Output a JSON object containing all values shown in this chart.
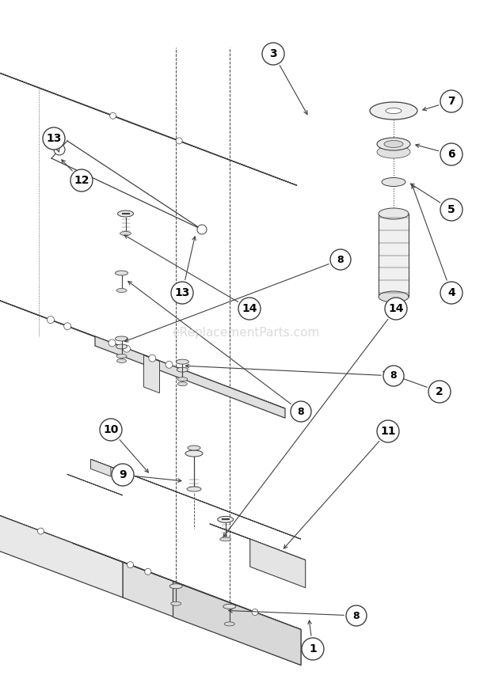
{
  "bg_color": "#ffffff",
  "line_color": "#404040",
  "watermark_text": "eReplacementParts.com",
  "watermark_fontsize": 11,
  "fig_width": 6.2,
  "fig_height": 8.58,
  "dpi": 100
}
